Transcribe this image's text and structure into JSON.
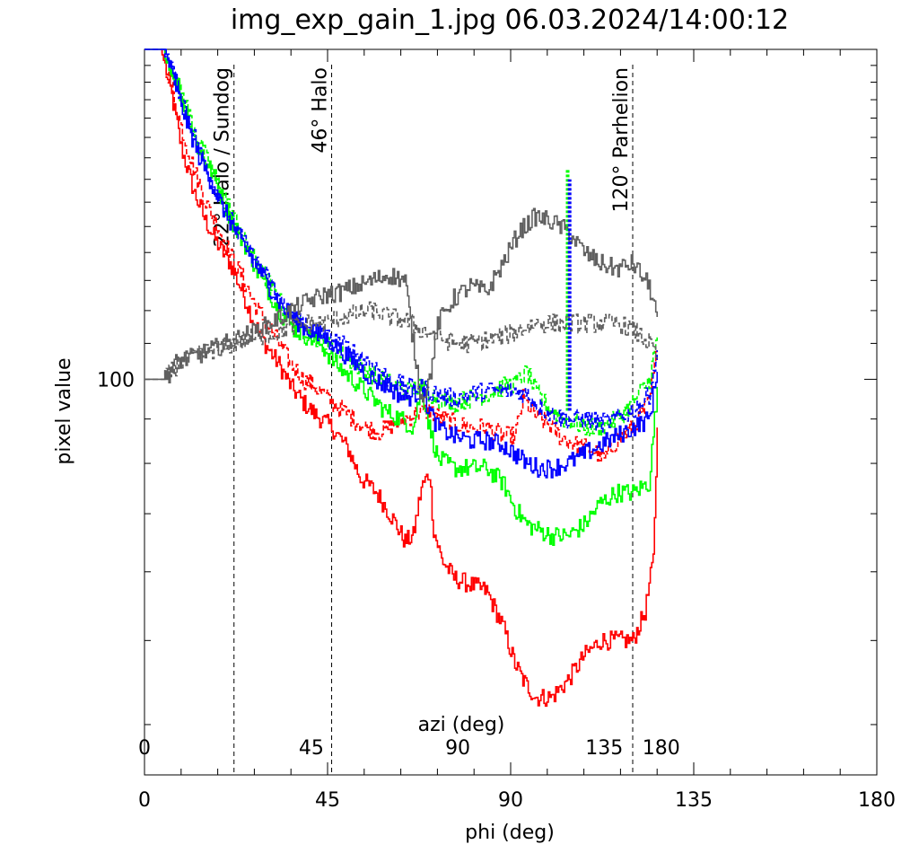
{
  "chart_data": {
    "type": "line",
    "title": "img_exp_gain_1.jpg 06.03.2024/14:00:12",
    "xlabel": "phi (deg)",
    "ylabel": "pixel value",
    "secondary_xlabel": "azi (deg)",
    "xlim": [
      0,
      180
    ],
    "ylim_log": [
      35,
      240
    ],
    "y_scale": "log",
    "x_ticks": [
      "0",
      "45",
      "90",
      "135",
      "180"
    ],
    "y_ticks": [
      "100"
    ],
    "secondary_x_ticks": [
      {
        "label": "0",
        "phi": 0
      },
      {
        "label": "45",
        "phi": 41
      },
      {
        "label": "90",
        "phi": 77
      },
      {
        "label": "135",
        "phi": 113
      },
      {
        "label": "180",
        "phi": 127
      }
    ],
    "annotations": [
      {
        "text": "22° Halo / Sundog",
        "phi": 22
      },
      {
        "text": "46° Halo",
        "phi": 46
      },
      {
        "text": "120° Parhelion",
        "phi": 120
      }
    ],
    "series": [
      {
        "color": "#ff0000",
        "style": "solid",
        "points": [
          [
            0,
            240
          ],
          [
            4,
            240
          ],
          [
            6,
            220
          ],
          [
            9,
            185
          ],
          [
            12,
            165
          ],
          [
            15,
            152
          ],
          [
            18,
            143
          ],
          [
            21,
            136
          ],
          [
            24,
            126
          ],
          [
            27,
            116
          ],
          [
            30,
            109
          ],
          [
            33,
            104
          ],
          [
            36,
            98
          ],
          [
            39,
            94
          ],
          [
            42,
            91
          ],
          [
            46,
            88
          ],
          [
            50,
            83
          ],
          [
            53,
            77
          ],
          [
            57,
            74
          ],
          [
            61,
            69
          ],
          [
            64,
            65
          ],
          [
            66,
            66
          ],
          [
            68,
            75
          ],
          [
            70,
            78
          ],
          [
            71,
            67
          ],
          [
            73,
            62
          ],
          [
            76,
            59
          ],
          [
            80,
            58
          ],
          [
            84,
            57
          ],
          [
            88,
            52
          ],
          [
            91,
            47
          ],
          [
            93,
            45
          ],
          [
            96,
            43
          ],
          [
            100,
            43
          ],
          [
            104,
            45
          ],
          [
            108,
            48
          ],
          [
            112,
            50
          ],
          [
            116,
            50
          ],
          [
            120,
            50
          ],
          [
            123,
            54
          ],
          [
            125,
            62
          ],
          [
            126,
            88
          ]
        ]
      },
      {
        "color": "#ff0000",
        "style": "dashed",
        "points": [
          [
            0,
            240
          ],
          [
            4,
            240
          ],
          [
            6,
            222
          ],
          [
            9,
            195
          ],
          [
            12,
            175
          ],
          [
            15,
            160
          ],
          [
            18,
            150
          ],
          [
            21,
            139
          ],
          [
            24,
            131
          ],
          [
            27,
            122
          ],
          [
            30,
            116
          ],
          [
            33,
            110
          ],
          [
            36,
            104
          ],
          [
            39,
            100
          ],
          [
            42,
            98
          ],
          [
            46,
            94
          ],
          [
            50,
            91
          ],
          [
            54,
            88
          ],
          [
            58,
            87
          ],
          [
            62,
            89
          ],
          [
            66,
            91
          ],
          [
            70,
            92
          ],
          [
            73,
            90
          ],
          [
            76,
            89
          ],
          [
            80,
            88
          ],
          [
            84,
            88
          ],
          [
            88,
            86
          ],
          [
            91,
            86
          ],
          [
            93,
            95
          ],
          [
            95,
            92
          ],
          [
            97,
            90
          ],
          [
            99,
            89
          ],
          [
            102,
            86
          ],
          [
            106,
            84
          ],
          [
            110,
            83
          ],
          [
            113,
            81
          ],
          [
            116,
            85
          ],
          [
            120,
            88
          ],
          [
            124,
            94
          ],
          [
            126,
            108
          ]
        ]
      },
      {
        "color": "#00ff00",
        "style": "solid",
        "points": [
          [
            0,
            240
          ],
          [
            5,
            240
          ],
          [
            7,
            225
          ],
          [
            10,
            205
          ],
          [
            13,
            185
          ],
          [
            16,
            175
          ],
          [
            19,
            162
          ],
          [
            22,
            150
          ],
          [
            25,
            142
          ],
          [
            28,
            132
          ],
          [
            31,
            125
          ],
          [
            34,
            118
          ],
          [
            37,
            114
          ],
          [
            40,
            112
          ],
          [
            43,
            110
          ],
          [
            47,
            104
          ],
          [
            51,
            100
          ],
          [
            55,
            96
          ],
          [
            59,
            92
          ],
          [
            63,
            90
          ],
          [
            66,
            88
          ],
          [
            68,
            98
          ],
          [
            70,
            88
          ],
          [
            72,
            81
          ],
          [
            76,
            79
          ],
          [
            80,
            79
          ],
          [
            84,
            79
          ],
          [
            88,
            76
          ],
          [
            91,
            71
          ],
          [
            94,
            68
          ],
          [
            97,
            67
          ],
          [
            100,
            66
          ],
          [
            104,
            66
          ],
          [
            108,
            68
          ],
          [
            112,
            72
          ],
          [
            116,
            74
          ],
          [
            120,
            74
          ],
          [
            124,
            76
          ],
          [
            126,
            98
          ]
        ]
      },
      {
        "color": "#00ff00",
        "style": "dashed",
        "points": [
          [
            0,
            240
          ],
          [
            5,
            240
          ],
          [
            7,
            226
          ],
          [
            10,
            208
          ],
          [
            13,
            189
          ],
          [
            16,
            176
          ],
          [
            19,
            165
          ],
          [
            22,
            153
          ],
          [
            25,
            143
          ],
          [
            28,
            135
          ],
          [
            31,
            128
          ],
          [
            34,
            121
          ],
          [
            37,
            116
          ],
          [
            40,
            114
          ],
          [
            44,
            110
          ],
          [
            48,
            107
          ],
          [
            52,
            104
          ],
          [
            56,
            101
          ],
          [
            60,
            99
          ],
          [
            64,
            97
          ],
          [
            68,
            98
          ],
          [
            72,
            95
          ],
          [
            76,
            94
          ],
          [
            80,
            95
          ],
          [
            84,
            96
          ],
          [
            88,
            98
          ],
          [
            91,
            99
          ],
          [
            94,
            102
          ],
          [
            96,
            97
          ],
          [
            99,
            93
          ],
          [
            103,
            90
          ],
          [
            106,
            89
          ],
          [
            108,
            88
          ],
          [
            112,
            88
          ],
          [
            116,
            90
          ],
          [
            120,
            94
          ],
          [
            124,
            100
          ],
          [
            126,
            112
          ]
        ]
      },
      {
        "color": "#0000ff",
        "style": "solid",
        "points": [
          [
            0,
            240
          ],
          [
            5,
            240
          ],
          [
            7,
            222
          ],
          [
            10,
            200
          ],
          [
            13,
            182
          ],
          [
            16,
            170
          ],
          [
            19,
            158
          ],
          [
            22,
            149
          ],
          [
            25,
            141
          ],
          [
            28,
            134
          ],
          [
            31,
            127
          ],
          [
            34,
            121
          ],
          [
            37,
            117
          ],
          [
            40,
            114
          ],
          [
            44,
            112
          ],
          [
            48,
            108
          ],
          [
            52,
            104
          ],
          [
            56,
            100
          ],
          [
            60,
            98
          ],
          [
            64,
            95
          ],
          [
            68,
            97
          ],
          [
            70,
            92
          ],
          [
            72,
            88
          ],
          [
            76,
            86
          ],
          [
            80,
            85
          ],
          [
            84,
            85
          ],
          [
            88,
            84
          ],
          [
            91,
            82
          ],
          [
            94,
            80
          ],
          [
            97,
            79
          ],
          [
            100,
            79
          ],
          [
            104,
            80
          ],
          [
            108,
            82
          ],
          [
            112,
            84
          ],
          [
            116,
            86
          ],
          [
            120,
            88
          ],
          [
            124,
            90
          ],
          [
            126,
            102
          ]
        ]
      },
      {
        "color": "#0000ff",
        "style": "dashed",
        "points": [
          [
            0,
            240
          ],
          [
            5,
            240
          ],
          [
            7,
            225
          ],
          [
            10,
            205
          ],
          [
            13,
            186
          ],
          [
            16,
            172
          ],
          [
            19,
            160
          ],
          [
            22,
            150
          ],
          [
            25,
            142
          ],
          [
            28,
            135
          ],
          [
            31,
            129
          ],
          [
            34,
            122
          ],
          [
            37,
            118
          ],
          [
            40,
            115
          ],
          [
            44,
            112
          ],
          [
            48,
            110
          ],
          [
            52,
            107
          ],
          [
            56,
            104
          ],
          [
            60,
            100
          ],
          [
            64,
            98
          ],
          [
            68,
            98
          ],
          [
            72,
            96
          ],
          [
            76,
            95
          ],
          [
            80,
            96
          ],
          [
            84,
            97
          ],
          [
            88,
            97
          ],
          [
            91,
            97
          ],
          [
            94,
            96
          ],
          [
            97,
            93
          ],
          [
            100,
            91
          ],
          [
            103,
            90
          ],
          [
            106,
            90
          ],
          [
            109,
            90
          ],
          [
            112,
            89
          ],
          [
            116,
            90
          ],
          [
            120,
            92
          ],
          [
            124,
            96
          ],
          [
            126,
            108
          ]
        ]
      },
      {
        "color": "#606060",
        "style": "solid",
        "points": [
          [
            0,
            100
          ],
          [
            5,
            100
          ],
          [
            8,
            105
          ],
          [
            12,
            106
          ],
          [
            16,
            108
          ],
          [
            20,
            110
          ],
          [
            24,
            112
          ],
          [
            28,
            114
          ],
          [
            32,
            117
          ],
          [
            36,
            120
          ],
          [
            40,
            123
          ],
          [
            44,
            125
          ],
          [
            48,
            126
          ],
          [
            52,
            128
          ],
          [
            56,
            130
          ],
          [
            60,
            132
          ],
          [
            64,
            130
          ],
          [
            66,
            110
          ],
          [
            68,
            95
          ],
          [
            70,
            100
          ],
          [
            72,
            116
          ],
          [
            76,
            124
          ],
          [
            80,
            128
          ],
          [
            84,
            126
          ],
          [
            88,
            136
          ],
          [
            92,
            148
          ],
          [
            96,
            154
          ],
          [
            100,
            152
          ],
          [
            104,
            148
          ],
          [
            108,
            140
          ],
          [
            112,
            136
          ],
          [
            116,
            134
          ],
          [
            120,
            136
          ],
          [
            124,
            128
          ],
          [
            126,
            118
          ]
        ]
      },
      {
        "color": "#606060",
        "style": "dashed",
        "points": [
          [
            0,
            100
          ],
          [
            5,
            100
          ],
          [
            8,
            104
          ],
          [
            12,
            106
          ],
          [
            16,
            108
          ],
          [
            20,
            109
          ],
          [
            24,
            111
          ],
          [
            28,
            112
          ],
          [
            32,
            113
          ],
          [
            36,
            115
          ],
          [
            40,
            116
          ],
          [
            44,
            116
          ],
          [
            48,
            118
          ],
          [
            52,
            119
          ],
          [
            56,
            120
          ],
          [
            60,
            118
          ],
          [
            64,
            117
          ],
          [
            68,
            114
          ],
          [
            72,
            112
          ],
          [
            76,
            110
          ],
          [
            80,
            110
          ],
          [
            84,
            111
          ],
          [
            88,
            112
          ],
          [
            92,
            114
          ],
          [
            96,
            116
          ],
          [
            100,
            116
          ],
          [
            104,
            116
          ],
          [
            108,
            116
          ],
          [
            112,
            116
          ],
          [
            116,
            116
          ],
          [
            120,
            114
          ],
          [
            124,
            110
          ],
          [
            126,
            106
          ]
        ]
      },
      {
        "color": "#00ff00",
        "style": "dotted",
        "points": [
          [
            104,
            92
          ],
          [
            104,
            175
          ]
        ]
      },
      {
        "color": "#0000ff",
        "style": "dotted",
        "points": [
          [
            104.5,
            92
          ],
          [
            104.5,
            170
          ]
        ]
      }
    ]
  }
}
